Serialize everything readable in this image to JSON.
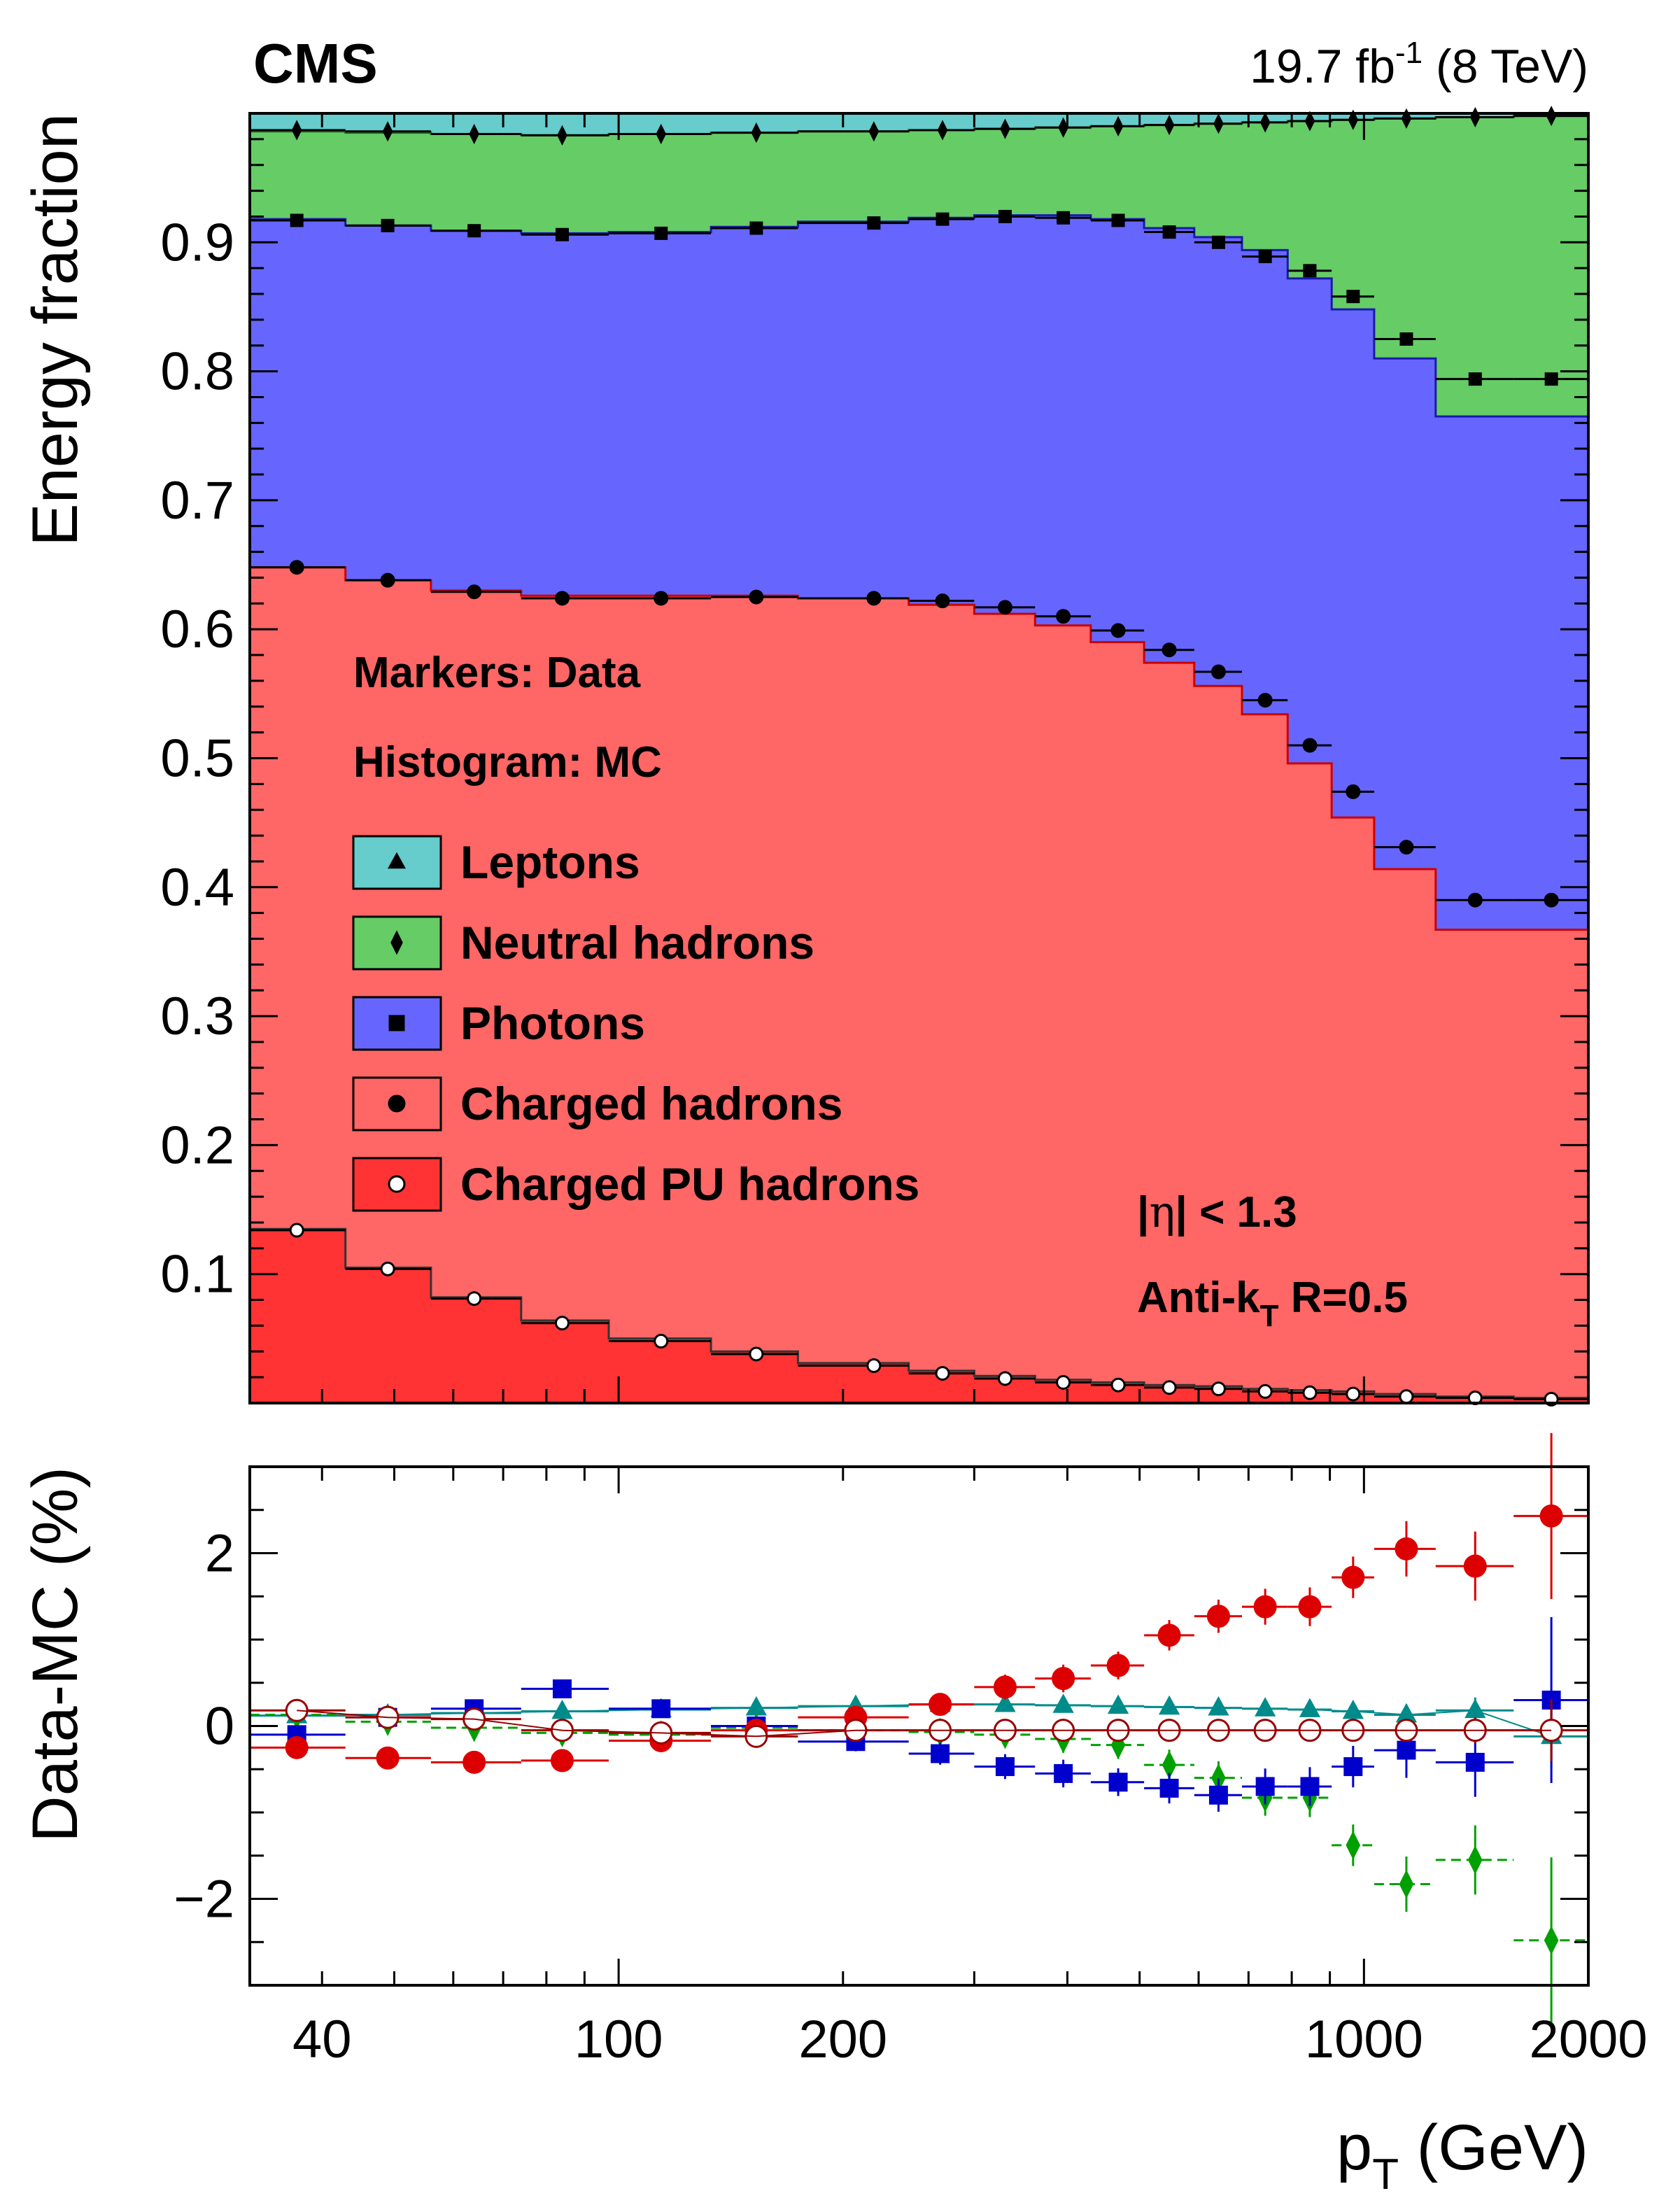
{
  "header": {
    "experiment": "CMS",
    "lumi_value": "19.7 fb",
    "lumi_exp": "-1",
    "lumi_energy": "(8 TeV)"
  },
  "legend": {
    "line1": "Markers: Data",
    "line2": "Histogram: MC",
    "entries": [
      {
        "label": "Leptons",
        "fill": "#66cccc",
        "marker": "triangle"
      },
      {
        "label": "Neutral hadrons",
        "fill": "#66cc66",
        "marker": "diamond"
      },
      {
        "label": "Photons",
        "fill": "#6666ff",
        "marker": "square"
      },
      {
        "label": "Charged hadrons",
        "fill": "#ff6666",
        "marker": "circle"
      },
      {
        "label": "Charged PU hadrons",
        "fill": "#ff3333",
        "marker": "open-circle"
      }
    ]
  },
  "annotations": {
    "eta_prefix": "|",
    "eta_symbol": "η",
    "eta_rest": "| < 1.3",
    "algo_main": "Anti-k",
    "algo_sub": "T",
    "algo_rest": " R=0.5"
  },
  "axes": {
    "top_ylabel": "Energy fraction",
    "bottom_ylabel": "Data-MC (%)",
    "xlabel_main": "p",
    "xlabel_sub": "T",
    "xlabel_unit": " (GeV)",
    "x_ticklabels": [
      "40",
      "100",
      "200",
      "1000",
      "2000"
    ],
    "top_yticklabels": [
      "0.1",
      "0.2",
      "0.3",
      "0.4",
      "0.5",
      "0.6",
      "0.7",
      "0.8",
      "0.9"
    ],
    "bottom_yticklabels": [
      "−2",
      "0",
      "2"
    ]
  },
  "chart_data": [
    {
      "type": "area",
      "title": "",
      "xlabel": "p_T (GeV)",
      "ylabel": "Energy fraction",
      "x_scale": "log",
      "xlim": [
        32,
        2000
      ],
      "ylim": [
        0,
        1.0
      ],
      "bin_edges": [
        32,
        43,
        56,
        74,
        97,
        133,
        174,
        245,
        300,
        362,
        430,
        507,
        592,
        686,
        790,
        905,
        1032,
        1248,
        1588,
        2000
      ],
      "x": [
        37,
        49,
        64,
        84,
        114,
        153,
        220,
        272,
        330,
        395,
        468,
        548,
        638,
        737,
        846,
        967,
        1140,
        1410,
        1784
      ],
      "mc_stack_tops": {
        "charged_pu_hadrons": [
          0.135,
          0.105,
          0.082,
          0.064,
          0.05,
          0.04,
          0.031,
          0.025,
          0.021,
          0.018,
          0.016,
          0.014,
          0.013,
          0.011,
          0.01,
          0.009,
          0.007,
          0.005,
          0.004
        ],
        "charged_hadrons": [
          0.648,
          0.638,
          0.63,
          0.626,
          0.626,
          0.626,
          0.624,
          0.619,
          0.612,
          0.603,
          0.59,
          0.574,
          0.556,
          0.534,
          0.496,
          0.454,
          0.414,
          0.367,
          0.367
        ],
        "photons": [
          0.918,
          0.913,
          0.909,
          0.907,
          0.908,
          0.912,
          0.916,
          0.919,
          0.921,
          0.921,
          0.918,
          0.911,
          0.904,
          0.894,
          0.872,
          0.848,
          0.81,
          0.765,
          0.765
        ],
        "neutral_hadrons": [
          0.986,
          0.985,
          0.984,
          0.983,
          0.984,
          0.985,
          0.986,
          0.987,
          0.988,
          0.989,
          0.99,
          0.991,
          0.992,
          0.993,
          0.994,
          0.995,
          0.996,
          0.997,
          0.998
        ],
        "leptons": [
          1.0,
          1.0,
          1.0,
          1.0,
          1.0,
          1.0,
          1.0,
          1.0,
          1.0,
          1.0,
          1.0,
          1.0,
          1.0,
          1.0,
          1.0,
          1.0,
          1.0,
          1.0,
          1.0
        ]
      },
      "data_points": {
        "leptons_plus_neutral": [
          0.987,
          0.986,
          0.984,
          0.983,
          0.984,
          0.985,
          0.986,
          0.987,
          0.988,
          0.989,
          0.99,
          0.991,
          0.992,
          0.993,
          0.994,
          0.995,
          0.996,
          0.997,
          0.998
        ],
        "photons": [
          0.917,
          0.913,
          0.909,
          0.906,
          0.907,
          0.911,
          0.915,
          0.918,
          0.92,
          0.919,
          0.917,
          0.908,
          0.9,
          0.889,
          0.878,
          0.858,
          0.825,
          0.794,
          0.794
        ],
        "charged_hadrons": [
          0.648,
          0.638,
          0.629,
          0.624,
          0.624,
          0.625,
          0.624,
          0.622,
          0.617,
          0.61,
          0.599,
          0.584,
          0.567,
          0.545,
          0.51,
          0.474,
          0.431,
          0.39,
          0.39
        ],
        "charged_pu_hadrons": [
          0.134,
          0.104,
          0.081,
          0.062,
          0.048,
          0.038,
          0.029,
          0.023,
          0.019,
          0.016,
          0.014,
          0.012,
          0.011,
          0.009,
          0.008,
          0.007,
          0.005,
          0.004,
          0.003
        ]
      },
      "legend_position": "middle-left"
    },
    {
      "type": "scatter",
      "title": "",
      "xlabel": "p_T (GeV)",
      "ylabel": "Data-MC (%)",
      "x_scale": "log",
      "xlim": [
        32,
        2000
      ],
      "ylim": [
        -3,
        3
      ],
      "x": [
        37,
        49,
        64,
        84,
        114,
        153,
        208,
        270,
        330,
        395,
        468,
        548,
        638,
        737,
        846,
        967,
        1140,
        1410,
        1784
      ],
      "series": [
        {
          "name": "Leptons",
          "values": [
            0.12,
            0.13,
            0.15,
            0.17,
            0.19,
            0.21,
            0.23,
            0.25,
            0.25,
            0.24,
            0.23,
            0.22,
            0.21,
            0.2,
            0.19,
            0.17,
            0.13,
            0.18,
            -0.12
          ]
        },
        {
          "name": "Neutral hadrons",
          "values": [
            0.13,
            0.05,
            -0.02,
            -0.08,
            -0.1,
            -0.02,
            -0.05,
            -0.07,
            -0.1,
            -0.15,
            -0.22,
            -0.45,
            -0.6,
            -0.83,
            -0.83,
            -1.38,
            -1.83,
            -1.55,
            -2.48
          ]
        },
        {
          "name": "Photons",
          "values": [
            -0.1,
            0.1,
            0.2,
            0.43,
            0.2,
            0.0,
            -0.18,
            -0.32,
            -0.47,
            -0.55,
            -0.65,
            -0.72,
            -0.8,
            -0.7,
            -0.7,
            -0.47,
            -0.28,
            -0.42,
            0.3
          ]
        },
        {
          "name": "Charged hadrons",
          "values": [
            -0.25,
            -0.37,
            -0.42,
            -0.4,
            -0.17,
            -0.05,
            0.1,
            0.25,
            0.45,
            0.55,
            0.7,
            1.05,
            1.27,
            1.38,
            1.38,
            1.72,
            2.05,
            1.85,
            2.43
          ]
        },
        {
          "name": "Charged PU hadrons",
          "values": [
            0.18,
            0.1,
            0.08,
            -0.05,
            -0.08,
            -0.12,
            -0.05,
            -0.05,
            -0.05,
            -0.05,
            -0.05,
            -0.05,
            -0.05,
            -0.05,
            -0.05,
            -0.05,
            -0.05,
            -0.05,
            -0.05
          ]
        }
      ],
      "colors": {
        "Leptons": "#008b8b",
        "Neutral hadrons": "#00a000",
        "Photons": "#0000cc",
        "Charged hadrons": "#dd0000",
        "Charged PU hadrons": "#990000"
      }
    }
  ]
}
